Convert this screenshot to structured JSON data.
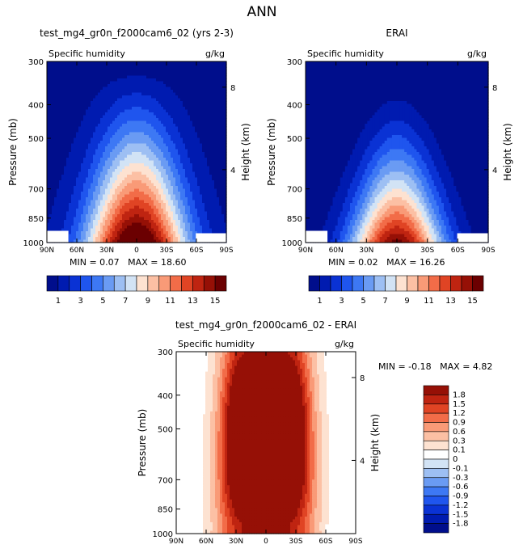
{
  "figure": {
    "title": "ANN"
  },
  "chart_data": [
    {
      "type": "contour",
      "title": "test_mg4_gr0n_f2000cam6_02 (yrs 2-3)",
      "left_label": "Specific humidity",
      "right_label": "g/kg",
      "ylabel": "Pressure (mb)",
      "ylabel_right": "Height (km)",
      "x_ticks": [
        "90N",
        "60N",
        "30N",
        "0",
        "30S",
        "60S",
        "90S"
      ],
      "y_ticks": [
        "300",
        "400",
        "500",
        "700",
        "850",
        "1000"
      ],
      "y_ticks_right": [
        "8",
        "4"
      ],
      "min_label": "MIN =",
      "min_value": "0.07",
      "max_label": "MAX =",
      "max_value": "18.60",
      "levels": [
        1,
        2,
        3,
        4,
        5,
        6,
        7,
        8,
        9,
        10,
        11,
        12,
        13,
        14,
        15
      ],
      "colorbar_labels": [
        "1",
        "3",
        "5",
        "7",
        "9",
        "11",
        "13",
        "15"
      ],
      "field": {
        "peak": 17.0,
        "floor": 0.5,
        "lat_center": 0,
        "width_near_surface": 50,
        "width_upper": 34,
        "depth_shape": 1.4
      }
    },
    {
      "type": "contour",
      "title": "ERAI",
      "left_label": "Specific humidity",
      "right_label": "g/kg",
      "ylabel": "Pressure (mb)",
      "ylabel_right": "Height (km)",
      "x_ticks": [
        "90N",
        "60N",
        "30N",
        "0",
        "30S",
        "60S",
        "90S"
      ],
      "y_ticks": [
        "300",
        "400",
        "500",
        "700",
        "850",
        "1000"
      ],
      "y_ticks_right": [
        "8",
        "4"
      ],
      "min_label": "MIN =",
      "min_value": "0.02",
      "max_label": "MAX =",
      "max_value": "16.26",
      "levels": [
        1,
        2,
        3,
        4,
        5,
        6,
        7,
        8,
        9,
        10,
        11,
        12,
        13,
        14,
        15
      ],
      "colorbar_labels": [
        "1",
        "3",
        "5",
        "7",
        "9",
        "11",
        "13",
        "15"
      ],
      "field": {
        "peak": 15.2,
        "floor": 0.2,
        "lat_center": 0,
        "width_near_surface": 45,
        "width_upper": 24,
        "depth_shape": 1.9
      }
    },
    {
      "type": "contour",
      "title": "test_mg4_gr0n_f2000cam6_02 - ERAI",
      "left_label": "Specific humidity",
      "right_label": "g/kg",
      "ylabel": "Pressure (mb)",
      "ylabel_right": "Height (km)",
      "x_ticks": [
        "90N",
        "60N",
        "30N",
        "0",
        "30S",
        "60S",
        "90S"
      ],
      "y_ticks": [
        "300",
        "400",
        "500",
        "700",
        "850",
        "1000"
      ],
      "y_ticks_right": [
        "8",
        "4"
      ],
      "min_label": "MIN =",
      "min_value": "-0.18",
      "max_label": "MAX =",
      "max_value": "4.82",
      "levels": [
        -1.8,
        -1.5,
        -1.2,
        -0.9,
        -0.6,
        -0.3,
        -0.1,
        0,
        0.1,
        0.3,
        0.6,
        0.9,
        1.2,
        1.5,
        1.8
      ],
      "colorbar_labels": [
        "1.8",
        "1.5",
        "1.2",
        "0.9",
        "0.6",
        "0.3",
        "0.1",
        "0",
        "-0.1",
        "-0.3",
        "-0.6",
        "-0.9",
        "-1.2",
        "-1.5",
        "-1.8"
      ],
      "field": {
        "peak": 3.4,
        "floor": 0.05,
        "lat_center": 0,
        "width_near_surface": 40,
        "width_upper": 36,
        "depth_shape": 1.0
      }
    }
  ],
  "colors": {
    "seq": [
      "#000e8c",
      "#001bb0",
      "#0a32d4",
      "#1f55ee",
      "#3d78f4",
      "#6a9bf3",
      "#9dbff3",
      "#d2e3f5",
      "#fde2d1",
      "#fcc0a4",
      "#f99a77",
      "#f26c48",
      "#e04424",
      "#bf2411",
      "#961006",
      "#6b0001"
    ],
    "div": [
      "#000e8c",
      "#001bb0",
      "#0a32d4",
      "#1f55ee",
      "#3d78f4",
      "#6a9bf3",
      "#9dbff3",
      "#d2e3f5",
      "#ffffff",
      "#fde2d1",
      "#fcc0a4",
      "#f99a77",
      "#f26c48",
      "#e04424",
      "#bf2411",
      "#961006"
    ]
  }
}
